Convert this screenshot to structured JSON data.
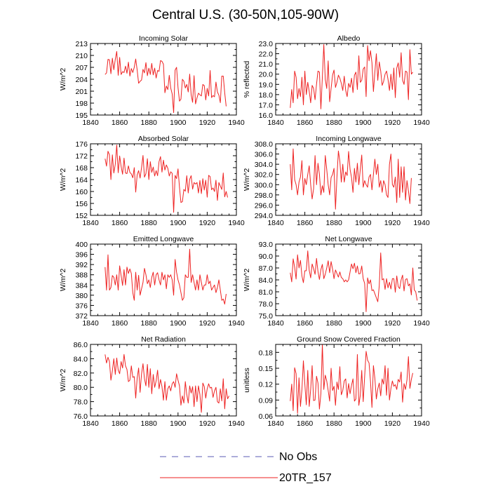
{
  "title": "Central U.S. (30-50N,105-90W)",
  "colors": {
    "obs": "#5b5bb5",
    "model": "#ee2222"
  },
  "legend": [
    {
      "label": "No Obs",
      "style": "dashed",
      "color": "#5b5bb5"
    },
    {
      "label": "20TR_157",
      "style": "solid",
      "color": "#ee2222"
    }
  ],
  "chart_data": [
    {
      "type": "line",
      "title": "Incoming Solar",
      "ylabel": "W/m^2",
      "xlim": [
        1840,
        1940
      ],
      "ylim": [
        195,
        213
      ],
      "xticks": [
        1840,
        1860,
        1880,
        1900,
        1920,
        1940
      ],
      "yticks": [
        195,
        198,
        201,
        204,
        207,
        210,
        213
      ],
      "ytick_labels": [
        "195",
        "198",
        "201",
        "204",
        "207",
        "210",
        "213"
      ],
      "x_start": 1850,
      "series": [
        {
          "name": "20TR_157",
          "values": [
            205.2,
            205.6,
            209.0,
            208.9,
            205.4,
            209.3,
            206.4,
            209.0,
            211.0,
            205.0,
            209.5,
            205.2,
            205.9,
            205.7,
            207.3,
            205.5,
            208.3,
            204.8,
            206.7,
            205.7,
            207.0,
            209.1,
            206.3,
            203.0,
            203.5,
            203.8,
            206.5,
            205.6,
            208.2,
            204.9,
            206.8,
            205.2,
            208.0,
            205.1,
            206.8,
            204.3,
            206.2,
            206.0,
            208.7,
            208.5,
            207.8,
            200.6,
            202.3,
            201.4,
            205.0,
            201.8,
            200.3,
            195.6,
            206.3,
            207.0,
            201.9,
            198.5,
            199.0,
            204.0,
            203.5,
            201.8,
            202.7,
            200.8,
            205.3,
            200.1,
            198.2,
            204.9,
            197.8,
            199.3,
            200.5,
            200.1,
            199.8,
            202.7,
            202.4,
            198.8,
            201.7,
            199.8,
            206.2,
            199.4,
            199.9,
            199.6,
            203.3,
            200.8,
            200.0,
            198.1,
            204.8,
            204.8,
            200.6,
            197.2
          ]
        }
      ]
    },
    {
      "type": "line",
      "title": "Albedo",
      "ylabel": "% reflected",
      "xlim": [
        1840,
        1940
      ],
      "ylim": [
        16,
        23
      ],
      "xticks": [
        1840,
        1860,
        1880,
        1900,
        1920,
        1940
      ],
      "yticks": [
        16,
        17,
        18,
        19,
        20,
        21,
        22,
        23
      ],
      "ytick_labels": [
        "16.0",
        "17.0",
        "18.0",
        "19.0",
        "20.0",
        "21.0",
        "22.0",
        "23.0"
      ],
      "x_start": 1850,
      "series": [
        {
          "name": "20TR_157",
          "values": [
            16.7,
            18.5,
            17.2,
            20.3,
            19.7,
            17.6,
            18.6,
            17.8,
            19.7,
            17.0,
            20.3,
            18.0,
            19.2,
            18.3,
            17.2,
            18.9,
            18.6,
            17.5,
            19.0,
            20.3,
            20.2,
            16.6,
            19.7,
            22.9,
            19.5,
            18.6,
            21.3,
            17.3,
            18.6,
            19.9,
            20.4,
            18.7,
            19.2,
            19.9,
            19.6,
            19.1,
            18.4,
            19.8,
            18.4,
            17.8,
            19.1,
            18.7,
            19.6,
            18.2,
            19.9,
            20.2,
            18.5,
            21.8,
            19.2,
            19.4,
            20.5,
            20.7,
            17.8,
            22.8,
            21.3,
            22.3,
            21.1,
            18.3,
            20.2,
            22.0,
            19.4,
            21.2,
            20.3,
            18.9,
            19.3,
            20.0,
            20.3,
            19.5,
            18.4,
            20.0,
            18.5,
            20.6,
            17.7,
            20.6,
            21.1,
            19.7,
            22.1,
            19.4,
            19.0,
            20.3,
            20.2,
            17.5,
            22.4,
            20.0,
            20.2
          ]
        }
      ]
    },
    {
      "type": "line",
      "title": "Absorbed Solar",
      "ylabel": "W/m^2",
      "xlim": [
        1840,
        1940
      ],
      "ylim": [
        152,
        176
      ],
      "xticks": [
        1840,
        1860,
        1880,
        1900,
        1920,
        1940
      ],
      "yticks": [
        152,
        156,
        160,
        164,
        168,
        172,
        176
      ],
      "ytick_labels": [
        "152",
        "156",
        "160",
        "164",
        "168",
        "172",
        "176"
      ],
      "x_start": 1850,
      "series": [
        {
          "name": "20TR_157",
          "values": [
            171.0,
            168.5,
            173.5,
            172.3,
            164.0,
            172.3,
            166.2,
            169.1,
            175.6,
            166.3,
            171.9,
            168.4,
            165.8,
            171.2,
            166.2,
            166.0,
            168.6,
            166.4,
            165.9,
            164.6,
            168.0,
            159.8,
            165.6,
            167.0,
            164.5,
            168.0,
            172.1,
            164.8,
            166.0,
            171.0,
            164.0,
            170.0,
            166.4,
            168.2,
            165.2,
            167.0,
            165.3,
            170.0,
            171.7,
            166.5,
            170.5,
            167.2,
            168.9,
            167.8,
            165.2,
            166.6,
            166.1,
            153.0,
            165.4,
            164.3,
            167.6,
            161.4,
            156.3,
            156.6,
            160.7,
            160.1,
            165.3,
            159.5,
            164.1,
            165.3,
            160.8,
            163.0,
            162.5,
            163.0,
            159.5,
            163.7,
            159.3,
            164.3,
            160.5,
            163.8,
            158.1,
            165.4,
            165.0,
            160.6,
            161.2,
            160.0,
            163.8,
            157.0,
            163.0,
            161.8,
            160.7,
            166.2,
            158.2,
            160.0,
            158.0
          ]
        }
      ]
    },
    {
      "type": "line",
      "title": "Incoming Longwave",
      "ylabel": "W/m^2",
      "xlim": [
        1840,
        1940
      ],
      "ylim": [
        294,
        308
      ],
      "xticks": [
        1840,
        1860,
        1880,
        1900,
        1920,
        1940
      ],
      "yticks": [
        294,
        296,
        298,
        300,
        302,
        304,
        306,
        308
      ],
      "ytick_labels": [
        "294.0",
        "296.0",
        "298.0",
        "300.0",
        "302.0",
        "304.0",
        "306.0",
        "308.0"
      ],
      "x_start": 1850,
      "series": [
        {
          "name": "20TR_157",
          "values": [
            304.0,
            299.0,
            307.0,
            301.0,
            300.0,
            298.0,
            300.5,
            301.5,
            304.7,
            298.0,
            301.2,
            300.0,
            302.0,
            303.7,
            300.0,
            297.2,
            299.2,
            305.7,
            300.0,
            304.2,
            302.0,
            298.0,
            299.8,
            298.5,
            305.7,
            303.0,
            300.0,
            298.0,
            301.4,
            302.0,
            303.2,
            295.2,
            301.5,
            306.6,
            304.6,
            300.5,
            304.0,
            300.5,
            302.5,
            301.8,
            306.5,
            303.0,
            301.4,
            298.5,
            303.2,
            300.5,
            304.2,
            300.0,
            303.0,
            305.8,
            299.5,
            300.8,
            300.0,
            299.5,
            301.5,
            302.0,
            299.0,
            302.0,
            305.0,
            302.0,
            304.0,
            299.5,
            300.8,
            298.5,
            300.8,
            300.0,
            298.0,
            297.5,
            304.0,
            306.0,
            300.0,
            299.5,
            301.5,
            296.5,
            305.0,
            297.5,
            303.5,
            298.5,
            303.5,
            297.0,
            300.8,
            298.8,
            296.3,
            301.3
          ]
        }
      ]
    },
    {
      "type": "line",
      "title": "Emitted Longwave",
      "ylabel": "W/m^2",
      "xlim": [
        1840,
        1940
      ],
      "ylim": [
        372,
        400
      ],
      "xticks": [
        1840,
        1860,
        1880,
        1900,
        1920,
        1940
      ],
      "yticks": [
        372,
        376,
        380,
        384,
        388,
        392,
        396,
        400
      ],
      "ytick_labels": [
        "372",
        "376",
        "380",
        "384",
        "388",
        "392",
        "396",
        "400"
      ],
      "x_start": 1850,
      "series": [
        {
          "name": "20TR_157",
          "values": [
            391.0,
            382.0,
            395.8,
            382.0,
            383.0,
            387.7,
            387.0,
            384.0,
            388.0,
            382.0,
            391.5,
            387.7,
            383.8,
            390.0,
            384.0,
            391.0,
            388.5,
            390.3,
            388.5,
            381.0,
            378.0,
            389.0,
            382.0,
            387.8,
            380.0,
            382.5,
            385.0,
            390.5,
            388.0,
            384.5,
            386.0,
            383.0,
            387.0,
            389.0,
            384.0,
            388.0,
            388.8,
            386.0,
            384.0,
            389.0,
            386.0,
            388.0,
            382.5,
            388.0,
            387.0,
            388.0,
            386.0,
            380.0,
            394.0,
            389.0,
            386.0,
            384.0,
            381.0,
            378.0,
            379.0,
            388.0,
            387.0,
            387.0,
            398.0,
            385.0,
            388.0,
            385.0,
            382.0,
            386.0,
            382.0,
            388.0,
            385.0,
            382.0,
            384.0,
            384.0,
            388.0,
            384.5,
            385.5,
            382.0,
            383.0,
            384.0,
            381.0,
            383.0,
            386.0,
            382.0,
            378.0,
            378.5,
            376.5,
            380.5
          ]
        }
      ]
    },
    {
      "type": "line",
      "title": "Net Longwave",
      "ylabel": "W/m^2",
      "xlim": [
        1840,
        1940
      ],
      "ylim": [
        75,
        93
      ],
      "xticks": [
        1840,
        1860,
        1880,
        1900,
        1920,
        1940
      ],
      "yticks": [
        75,
        78,
        81,
        84,
        87,
        90,
        93
      ],
      "ytick_labels": [
        "75.0",
        "78.0",
        "81.0",
        "84.0",
        "87.0",
        "90.0",
        "93.0"
      ],
      "x_start": 1850,
      "series": [
        {
          "name": "20TR_157",
          "values": [
            85.8,
            83.5,
            89.3,
            87.2,
            84.2,
            90.3,
            87.0,
            88.9,
            85.0,
            83.3,
            86.3,
            86.3,
            91.3,
            86.4,
            84.5,
            88.0,
            86.8,
            85.4,
            89.4,
            86.1,
            84.1,
            86.6,
            87.9,
            84.3,
            85.4,
            87.0,
            88.8,
            85.8,
            88.6,
            86.7,
            84.3,
            86.5,
            85.6,
            84.7,
            86.0,
            84.6,
            84.3,
            83.5,
            84.0,
            83.5,
            84.0,
            86.0,
            88.0,
            86.8,
            88.2,
            85.8,
            87.5,
            85.5,
            85.6,
            87.5,
            84.3,
            83.1,
            76.0,
            84.5,
            83.0,
            84.0,
            81.3,
            81.5,
            80.5,
            79.5,
            78.5,
            82.5,
            90.8,
            84.0,
            84.3,
            81.6,
            84.3,
            82.0,
            83.4,
            81.7,
            84.3,
            84.3,
            80.9,
            85.0,
            82.3,
            81.8,
            84.0,
            85.2,
            81.2,
            84.1,
            84.3,
            82.5,
            83.0,
            80.2,
            87.0,
            81.5,
            81.0,
            78.8
          ]
        }
      ]
    },
    {
      "type": "line",
      "title": "Net Radiation",
      "ylabel": "W/m^2",
      "xlim": [
        1840,
        1940
      ],
      "ylim": [
        76,
        86
      ],
      "xticks": [
        1840,
        1860,
        1880,
        1900,
        1920,
        1940
      ],
      "yticks": [
        76,
        78,
        80,
        82,
        84,
        86
      ],
      "ytick_labels": [
        "76.0",
        "78.0",
        "80.0",
        "82.0",
        "84.0",
        "86.0"
      ],
      "x_start": 1850,
      "series": [
        {
          "name": "20TR_157",
          "values": [
            84.6,
            83.4,
            84.2,
            83.6,
            81.0,
            82.3,
            84.0,
            81.8,
            84.1,
            82.4,
            81.9,
            83.6,
            82.7,
            84.6,
            83.0,
            82.5,
            80.8,
            81.0,
            83.0,
            81.4,
            81.5,
            78.5,
            81.3,
            82.7,
            79.3,
            81.9,
            83.3,
            81.2,
            80.2,
            83.2,
            80.0,
            82.6,
            79.1,
            81.8,
            80.0,
            80.9,
            82.4,
            79.8,
            81.1,
            80.1,
            78.2,
            80.8,
            78.2,
            79.8,
            80.2,
            79.5,
            80.5,
            80.8,
            80.0,
            81.9,
            81.0,
            80.2,
            77.5,
            78.8,
            77.8,
            80.8,
            79.0,
            77.8,
            80.2,
            79.2,
            80.1,
            77.3,
            80.2,
            78.0,
            80.2,
            79.0,
            76.5,
            80.6,
            80.1,
            78.5,
            79.8,
            80.5,
            79.9,
            80.0,
            78.6,
            79.5,
            80.0,
            78.0,
            77.8,
            79.8,
            78.1,
            81.2,
            77.0,
            79.8,
            78.4,
            78.8
          ]
        }
      ]
    },
    {
      "type": "line",
      "title": "Ground Snow Covered Fraction",
      "ylabel": "unitless",
      "xlim": [
        1840,
        1940
      ],
      "ylim": [
        0.06,
        0.195
      ],
      "xticks": [
        1840,
        1860,
        1880,
        1900,
        1920,
        1940
      ],
      "yticks": [
        0.06,
        0.09,
        0.12,
        0.15,
        0.18
      ],
      "ytick_labels": [
        "0.06",
        "0.09",
        "0.12",
        "0.15",
        "0.18"
      ],
      "x_start": 1850,
      "series": [
        {
          "name": "20TR_157",
          "values": [
            0.088,
            0.12,
            0.07,
            0.151,
            0.14,
            0.065,
            0.132,
            0.078,
            0.11,
            0.164,
            0.12,
            0.081,
            0.146,
            0.078,
            0.11,
            0.155,
            0.089,
            0.09,
            0.135,
            0.122,
            0.073,
            0.102,
            0.195,
            0.11,
            0.137,
            0.126,
            0.108,
            0.088,
            0.15,
            0.108,
            0.116,
            0.08,
            0.124,
            0.11,
            0.153,
            0.1,
            0.108,
            0.126,
            0.13,
            0.094,
            0.121,
            0.102,
            0.118,
            0.13,
            0.088,
            0.092,
            0.176,
            0.08,
            0.099,
            0.146,
            0.087,
            0.135,
            0.182,
            0.165,
            0.16,
            0.125,
            0.076,
            0.155,
            0.131,
            0.092,
            0.111,
            0.122,
            0.098,
            0.13,
            0.12,
            0.155,
            0.099,
            0.15,
            0.09,
            0.112,
            0.126,
            0.116,
            0.119,
            0.11,
            0.129,
            0.124,
            0.143,
            0.086,
            0.121,
            0.11,
            0.128,
            0.172,
            0.112,
            0.129,
            0.141
          ]
        }
      ]
    }
  ]
}
